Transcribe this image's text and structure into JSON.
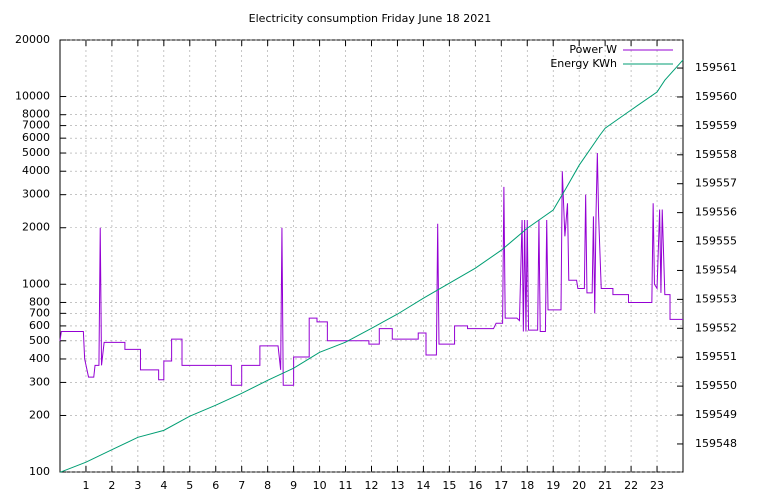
{
  "chart_data": {
    "type": "line",
    "title": "Electricity consumption Friday June 18 2021",
    "xlim": [
      0,
      24
    ],
    "xticks": [
      1,
      2,
      3,
      4,
      5,
      6,
      7,
      8,
      9,
      10,
      11,
      12,
      13,
      14,
      15,
      16,
      17,
      18,
      19,
      20,
      21,
      22,
      23
    ],
    "ylim": [
      100,
      20000
    ],
    "log_y": true,
    "yticks": [
      100,
      200,
      300,
      400,
      500,
      600,
      700,
      800,
      1000,
      2000,
      3000,
      4000,
      5000,
      6000,
      7000,
      8000,
      10000,
      20000
    ],
    "y2lim": [
      159547.03,
      159561.97
    ],
    "y2ticks": [
      159548,
      159549,
      159550,
      159551,
      159552,
      159553,
      159554,
      159555,
      159556,
      159557,
      159558,
      159559,
      159560,
      159561
    ],
    "grid": true,
    "legend": "top-right",
    "series": [
      {
        "name": "Power W",
        "color": "#9400d3",
        "axis": "y",
        "x": [
          0,
          0.05,
          0.9,
          0.95,
          1.1,
          1.3,
          1.35,
          1.5,
          1.55,
          1.6,
          1.7,
          2.5,
          2.5,
          3.1,
          3.1,
          3.8,
          3.8,
          4.0,
          4.0,
          4.3,
          4.3,
          4.7,
          4.7,
          6.6,
          6.6,
          7.0,
          7.0,
          7.7,
          7.7,
          8.4,
          8.5,
          8.55,
          8.6,
          9.0,
          9.0,
          9.6,
          9.6,
          9.9,
          9.9,
          10.3,
          10.3,
          11.9,
          11.9,
          12.3,
          12.3,
          12.8,
          12.8,
          13.8,
          13.8,
          14.1,
          14.1,
          14.5,
          14.55,
          14.6,
          15.2,
          15.2,
          15.7,
          15.7,
          16.7,
          16.8,
          17.05,
          17.1,
          17.15,
          17.6,
          17.7,
          17.8,
          17.85,
          17.9,
          17.95,
          18.0,
          18.05,
          18.4,
          18.45,
          18.5,
          18.7,
          18.75,
          18.8,
          19.3,
          19.35,
          19.45,
          19.55,
          19.6,
          19.9,
          19.95,
          20.2,
          20.25,
          20.3,
          20.5,
          20.55,
          20.6,
          20.65,
          20.7,
          20.75,
          20.85,
          21.3,
          21.3,
          21.9,
          21.9,
          22.8,
          22.85,
          22.9,
          23.0,
          23.1,
          23.15,
          23.2,
          23.3,
          23.5,
          23.5,
          24
        ],
        "values": [
          500,
          560,
          560,
          400,
          320,
          320,
          370,
          370,
          2000,
          370,
          490,
          490,
          450,
          450,
          350,
          350,
          310,
          310,
          390,
          390,
          510,
          510,
          370,
          370,
          290,
          290,
          370,
          370,
          470,
          470,
          350,
          2000,
          290,
          290,
          410,
          410,
          660,
          660,
          630,
          630,
          500,
          500,
          480,
          480,
          580,
          580,
          510,
          510,
          550,
          550,
          420,
          420,
          2100,
          480,
          480,
          600,
          600,
          580,
          580,
          620,
          620,
          3300,
          660,
          660,
          640,
          2200,
          560,
          2200,
          560,
          2200,
          570,
          570,
          2200,
          560,
          560,
          2200,
          730,
          730,
          4000,
          1800,
          2700,
          1050,
          1050,
          950,
          950,
          3000,
          900,
          900,
          2300,
          700,
          2400,
          5000,
          2300,
          950,
          950,
          880,
          880,
          800,
          800,
          2700,
          1000,
          950,
          2500,
          900,
          2500,
          880,
          880,
          650,
          650
        ]
      },
      {
        "name": "Energy KWh",
        "color": "#009e73",
        "axis": "y2",
        "x": [
          0,
          1,
          2,
          3,
          4,
          5,
          6,
          7,
          8,
          9,
          10,
          11,
          12,
          13,
          14,
          15,
          16,
          17,
          18,
          19,
          19.5,
          20,
          20.8,
          21,
          22,
          23,
          23.3,
          24
        ],
        "values": [
          159547.02,
          159547.37,
          159547.8,
          159548.23,
          159548.47,
          159548.96,
          159549.34,
          159549.75,
          159550.2,
          159550.62,
          159551.17,
          159551.52,
          159552.0,
          159552.49,
          159553.04,
          159553.56,
          159554.08,
          159554.7,
          159555.46,
          159556.09,
          159556.85,
          159557.64,
          159558.68,
          159558.92,
          159559.55,
          159560.17,
          159560.58,
          159561.28
        ]
      }
    ]
  }
}
